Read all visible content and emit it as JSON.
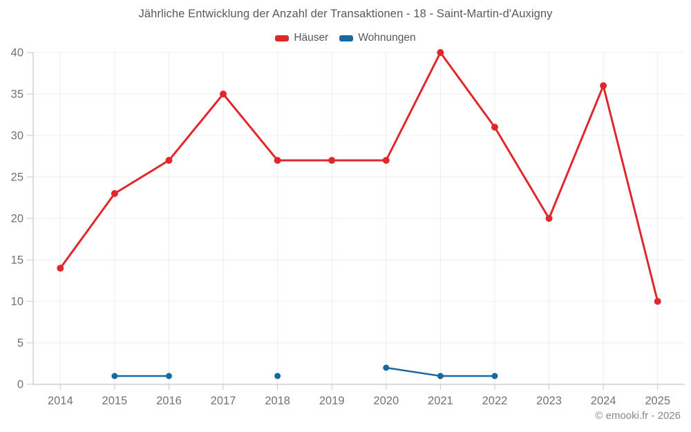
{
  "page": {
    "footer": "© emooki.fr - 2026"
  },
  "colors": {
    "haeuser": "#e0272c",
    "wohnungen": "#17699f",
    "grid": "#ececec",
    "axis": "#c6c8ca",
    "tick_label": "#6f7276",
    "title_text": "#55585c",
    "footer_text": "#85888b",
    "background": "#ffffff"
  },
  "chart_data": {
    "type": "line",
    "title": "Jährliche Entwicklung der Anzahl der Transaktionen - 18 - Saint-Martin-d'Auxigny",
    "categories": [
      "2014",
      "2015",
      "2016",
      "2017",
      "2018",
      "2019",
      "2020",
      "2021",
      "2022",
      "2023",
      "2024",
      "2025"
    ],
    "series": [
      {
        "name": "Häuser",
        "color": "#e0272c",
        "values": [
          14,
          23,
          27,
          35,
          27,
          27,
          27,
          40,
          31,
          20,
          36,
          10
        ]
      },
      {
        "name": "Wohnungen",
        "color": "#17699f",
        "values": [
          null,
          1,
          1,
          null,
          1,
          null,
          2,
          1,
          1,
          null,
          null,
          null
        ]
      }
    ],
    "xlabel": "",
    "ylabel": "",
    "ylim": [
      0,
      40
    ],
    "yticks": [
      0,
      5,
      10,
      15,
      20,
      25,
      30,
      35,
      40
    ],
    "grid": true,
    "legend_position": "top"
  }
}
